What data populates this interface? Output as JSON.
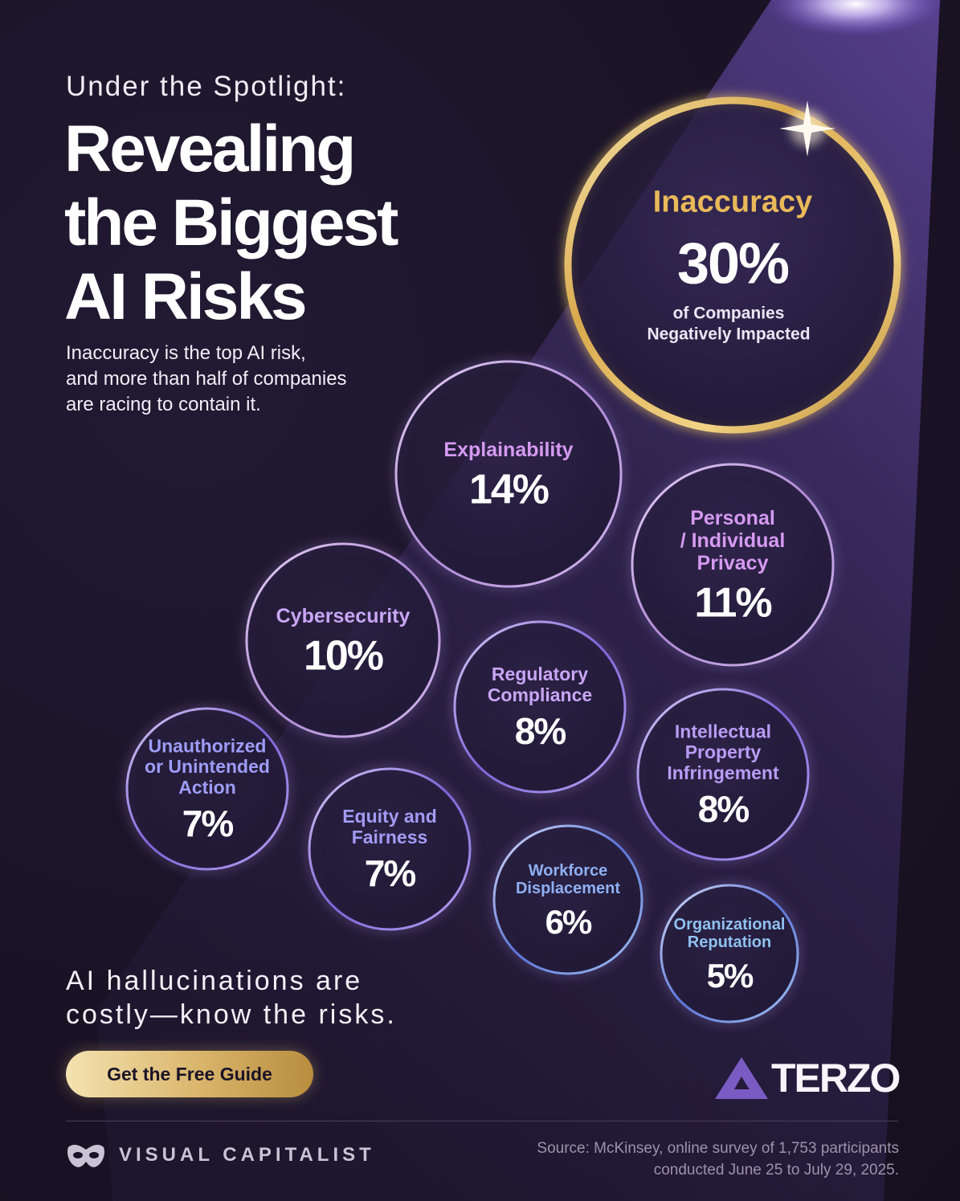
{
  "header": {
    "subtitle": "Under the Spotlight:",
    "title_lines": [
      "Revealing",
      "the Biggest",
      "AI Risks"
    ],
    "intro_lines": [
      "Inaccuracy is the top AI risk,",
      "and more than half of companies",
      "are racing to contain it."
    ]
  },
  "tagline_lines": [
    "AI hallucinations are",
    "costly—know the risks."
  ],
  "cta": {
    "label": "Get the Free Guide"
  },
  "brand": {
    "name": "TERZO",
    "color": "#7a5bc4"
  },
  "footer": {
    "publisher": "VISUAL CAPITALIST",
    "source_lines": [
      "Source: McKinsey, online survey of 1,753 participants",
      "conducted June 25 to July 29, 2025."
    ]
  },
  "colors": {
    "background": "#1a1326",
    "gold": "#e2bb5c",
    "purple": "#c98be6",
    "violet": "#a98bf0",
    "blue": "#8fb4f0"
  },
  "chart_data": {
    "type": "bubble",
    "value_unit": "%",
    "top_subtext_lines": [
      "of Companies",
      "Negatively Impacted"
    ],
    "categories": [
      "Inaccuracy",
      "Explainability",
      "Personal / Individual Privacy",
      "Cybersecurity",
      "Regulatory Compliance",
      "Intellectual Property Infringement",
      "Unauthorized or Unintended Action",
      "Equity and Fairness",
      "Workforce Displacement",
      "Organizational Reputation"
    ],
    "values": [
      30,
      14,
      11,
      10,
      8,
      8,
      7,
      7,
      6,
      5
    ],
    "label_lines": [
      [
        "Inaccuracy"
      ],
      [
        "Explainability"
      ],
      [
        "Personal",
        "/ Individual",
        "Privacy"
      ],
      [
        "Cybersecurity"
      ],
      [
        "Regulatory",
        "Compliance"
      ],
      [
        "Intellectual",
        "Property",
        "Infringement"
      ],
      [
        "Unauthorized",
        "or Unintended",
        "Action"
      ],
      [
        "Equity and",
        "Fairness"
      ],
      [
        "Workforce",
        "Displacement"
      ],
      [
        "Organizational",
        "Reputation"
      ]
    ],
    "label_colors": [
      "#e9b95a",
      "#d59af0",
      "#d59af0",
      "#c8a6f5",
      "#c8a6f5",
      "#b89cf5",
      "#9d9cf7",
      "#a29bf5",
      "#8fb0f3",
      "#8fc1f0"
    ],
    "value_labels": [
      "30%",
      "14%",
      "11%",
      "10%",
      "8%",
      "8%",
      "7%",
      "7%",
      "6%",
      "5%"
    ]
  }
}
